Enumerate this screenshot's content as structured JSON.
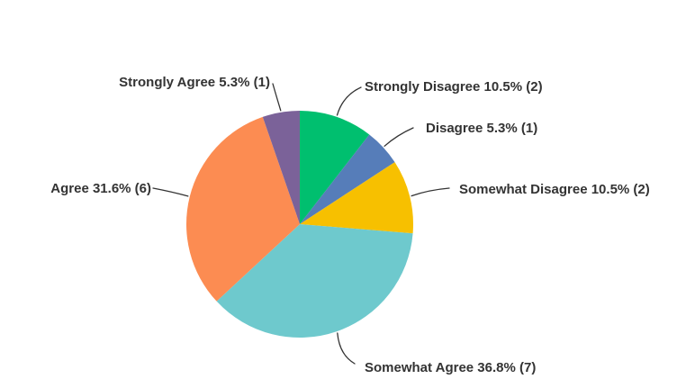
{
  "chart_data": {
    "type": "pie",
    "title": "",
    "legend": "none",
    "label_style": "outside-with-leader-lines",
    "start_angle_deg": 0,
    "direction": "clockwise",
    "total_responses": 19,
    "slices": [
      {
        "name": "Strongly Disagree",
        "pct": 10.5,
        "count": 2,
        "label": "Strongly Disagree 10.5% (2)",
        "color": "#00BF6F"
      },
      {
        "name": "Disagree",
        "pct": 5.3,
        "count": 1,
        "label": "Disagree 5.3% (1)",
        "color": "#567DB9"
      },
      {
        "name": "Somewhat Disagree",
        "pct": 10.5,
        "count": 2,
        "label": "Somewhat Disagree 10.5% (2)",
        "color": "#F7C000"
      },
      {
        "name": "Somewhat Agree",
        "pct": 36.8,
        "count": 7,
        "label": "Somewhat Agree 36.8% (7)",
        "color": "#6EC9CD"
      },
      {
        "name": "Agree",
        "pct": 31.6,
        "count": 6,
        "label": "Agree 31.6% (6)",
        "color": "#FC8C52"
      },
      {
        "name": "Strongly Agree",
        "pct": 5.3,
        "count": 1,
        "label": "Strongly Agree 5.3% (1)",
        "color": "#7B6299"
      }
    ]
  },
  "canvas": {
    "background": "#ffffff",
    "label_color": "#333333",
    "leader_line_color": "#333333"
  }
}
